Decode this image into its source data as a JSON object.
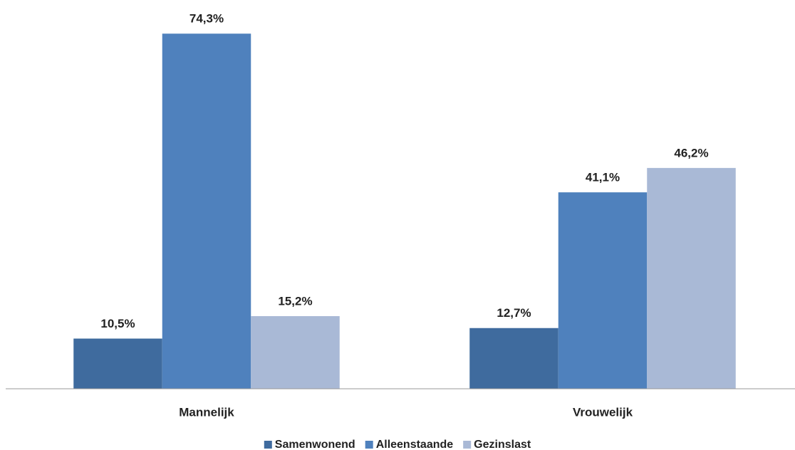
{
  "chart_data": {
    "type": "bar",
    "categories": [
      "Mannelijk",
      "Vrouwelijk"
    ],
    "series": [
      {
        "name": "Samenwonend",
        "color": "#3f6b9e",
        "values": [
          10.5,
          12.7
        ],
        "value_labels": [
          "10,5%",
          "12,7%"
        ]
      },
      {
        "name": "Alleenstaande",
        "color": "#4f81bd",
        "values": [
          74.3,
          41.1
        ],
        "value_labels": [
          "74,3%",
          "41,1%"
        ]
      },
      {
        "name": "Gezinslast",
        "color": "#a9b9d6",
        "values": [
          15.2,
          46.2
        ],
        "value_labels": [
          "15,2%",
          "46,2%"
        ]
      }
    ],
    "ylim": [
      0,
      80
    ]
  }
}
